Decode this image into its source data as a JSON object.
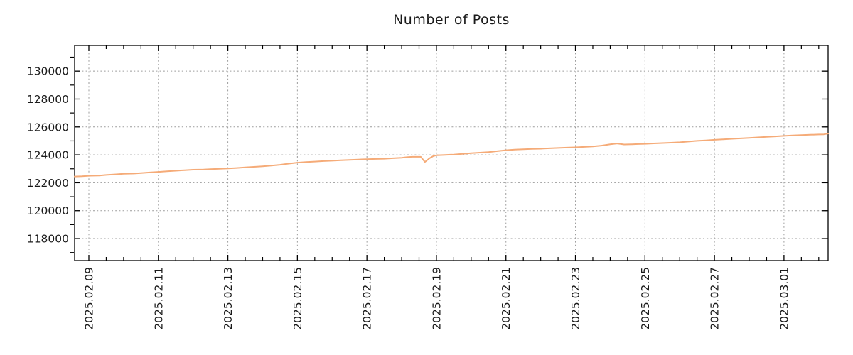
{
  "page": {
    "background": "#ffffff"
  },
  "chart_data": {
    "type": "line",
    "title": "Number of Posts",
    "legend": "none",
    "grid": {
      "show": true,
      "style": "dashed",
      "color": "#9c9c9c"
    },
    "x_axis": {
      "unit": "days since 2025-02-08 00:00",
      "range": [
        0.591,
        22.27
      ],
      "minor_tick_step": 0.5,
      "major_ticks": [
        {
          "t": 1,
          "label": "2025.02.09"
        },
        {
          "t": 3,
          "label": "2025.02.11"
        },
        {
          "t": 5,
          "label": "2025.02.13"
        },
        {
          "t": 7,
          "label": "2025.02.15"
        },
        {
          "t": 9,
          "label": "2025.02.17"
        },
        {
          "t": 11,
          "label": "2025.02.19"
        },
        {
          "t": 13,
          "label": "2025.02.21"
        },
        {
          "t": 15,
          "label": "2025.02.23"
        },
        {
          "t": 17,
          "label": "2025.02.25"
        },
        {
          "t": 19,
          "label": "2025.02.27"
        },
        {
          "t": 21,
          "label": "2025.03.01"
        }
      ]
    },
    "y_axis": {
      "range": [
        116425,
        131840
      ],
      "minor_tick_step": 1000,
      "major_ticks": [
        118000,
        120000,
        122000,
        124000,
        126000,
        128000,
        130000
      ]
    },
    "series": [
      {
        "name": "Number of Posts",
        "color": "#f5ab78",
        "line_width": 2,
        "points": [
          [
            0.59,
            122450
          ],
          [
            0.8,
            122465
          ],
          [
            1.0,
            122500
          ],
          [
            1.3,
            122520
          ],
          [
            1.5,
            122560
          ],
          [
            1.75,
            122600
          ],
          [
            2.0,
            122645
          ],
          [
            2.3,
            122660
          ],
          [
            2.5,
            122700
          ],
          [
            2.75,
            122740
          ],
          [
            3.0,
            122780
          ],
          [
            3.25,
            122820
          ],
          [
            3.5,
            122860
          ],
          [
            3.75,
            122900
          ],
          [
            4.0,
            122935
          ],
          [
            4.3,
            122950
          ],
          [
            4.5,
            122980
          ],
          [
            4.75,
            123000
          ],
          [
            5.0,
            123030
          ],
          [
            5.25,
            123060
          ],
          [
            5.5,
            123100
          ],
          [
            5.75,
            123140
          ],
          [
            6.0,
            123180
          ],
          [
            6.25,
            123230
          ],
          [
            6.5,
            123290
          ],
          [
            6.75,
            123370
          ],
          [
            7.0,
            123440
          ],
          [
            7.25,
            123480
          ],
          [
            7.5,
            123515
          ],
          [
            7.75,
            123550
          ],
          [
            8.0,
            123580
          ],
          [
            8.25,
            123610
          ],
          [
            8.5,
            123640
          ],
          [
            8.75,
            123665
          ],
          [
            9.0,
            123690
          ],
          [
            9.25,
            123705
          ],
          [
            9.5,
            123720
          ],
          [
            9.75,
            123755
          ],
          [
            10.0,
            123790
          ],
          [
            10.15,
            123830
          ],
          [
            10.3,
            123860
          ],
          [
            10.55,
            123860
          ],
          [
            10.67,
            123490
          ],
          [
            10.8,
            123750
          ],
          [
            10.9,
            123900
          ],
          [
            11.0,
            123970
          ],
          [
            11.25,
            123995
          ],
          [
            11.5,
            124020
          ],
          [
            11.75,
            124070
          ],
          [
            12.0,
            124120
          ],
          [
            12.25,
            124160
          ],
          [
            12.5,
            124200
          ],
          [
            12.75,
            124265
          ],
          [
            13.0,
            124330
          ],
          [
            13.25,
            124370
          ],
          [
            13.5,
            124395
          ],
          [
            13.75,
            124420
          ],
          [
            14.0,
            124440
          ],
          [
            14.25,
            124470
          ],
          [
            14.5,
            124495
          ],
          [
            14.75,
            124520
          ],
          [
            15.0,
            124540
          ],
          [
            15.25,
            124570
          ],
          [
            15.5,
            124600
          ],
          [
            15.75,
            124660
          ],
          [
            16.0,
            124760
          ],
          [
            16.2,
            124815
          ],
          [
            16.4,
            124745
          ],
          [
            16.6,
            124755
          ],
          [
            16.8,
            124775
          ],
          [
            17.0,
            124790
          ],
          [
            17.25,
            124820
          ],
          [
            17.5,
            124845
          ],
          [
            17.75,
            124870
          ],
          [
            18.0,
            124900
          ],
          [
            18.25,
            124950
          ],
          [
            18.5,
            125000
          ],
          [
            18.75,
            125040
          ],
          [
            19.0,
            125080
          ],
          [
            19.25,
            125115
          ],
          [
            19.5,
            125150
          ],
          [
            19.75,
            125180
          ],
          [
            20.0,
            125210
          ],
          [
            20.25,
            125250
          ],
          [
            20.5,
            125290
          ],
          [
            20.75,
            125325
          ],
          [
            21.0,
            125360
          ],
          [
            21.25,
            125390
          ],
          [
            21.5,
            125415
          ],
          [
            21.75,
            125440
          ],
          [
            22.0,
            125460
          ],
          [
            22.15,
            125470
          ],
          [
            22.27,
            125520
          ]
        ]
      }
    ],
    "colors": {
      "axis": "#000000",
      "text": "#1a1a1a",
      "background": "#ffffff"
    }
  }
}
